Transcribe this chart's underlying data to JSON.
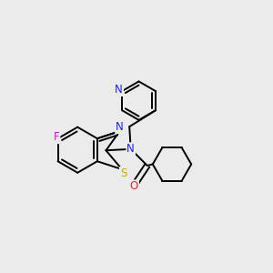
{
  "background_color": "#ebebeb",
  "atom_colors": {
    "N": "#2020ff",
    "S": "#ccaa00",
    "O": "#ff2020",
    "F": "#ee00ee",
    "C": "#000000"
  },
  "font_size": 8.5,
  "line_width": 1.4,
  "fig_size": [
    3.0,
    3.0
  ],
  "dpi": 100
}
